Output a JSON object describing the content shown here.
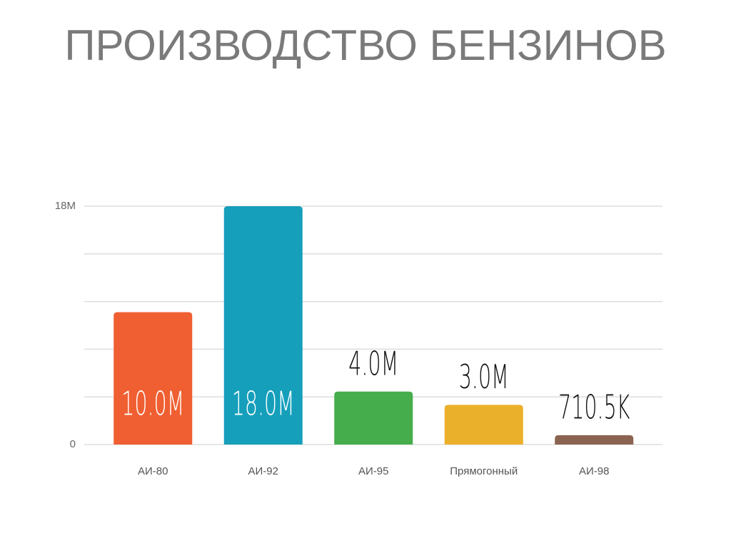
{
  "chart_data": {
    "type": "bar",
    "title": "ПРОИЗВОДСТВО БЕНЗИНОВ",
    "categories": [
      "АИ-80",
      "АИ-92",
      "АИ-95",
      "Прямогонный",
      "АИ-98"
    ],
    "values": [
      10000000,
      18000000,
      4000000,
      3000000,
      710500
    ],
    "value_labels": [
      "10.0M",
      "18.0M",
      "4.0M",
      "3.0M",
      "710.5K"
    ],
    "colors": [
      "#f05f32",
      "#159fbb",
      "#46ad4c",
      "#ebb02b",
      "#8b6451"
    ],
    "ylim": [
      0,
      18000000
    ],
    "yticks": [
      0,
      {
        "value": 3600000,
        "label": null
      },
      {
        "value": 7200000,
        "label": null
      },
      {
        "value": 10800000,
        "label": null
      },
      {
        "value": 14400000,
        "label": null
      },
      {
        "value": 18000000,
        "label": "18M"
      }
    ],
    "grid": true
  }
}
